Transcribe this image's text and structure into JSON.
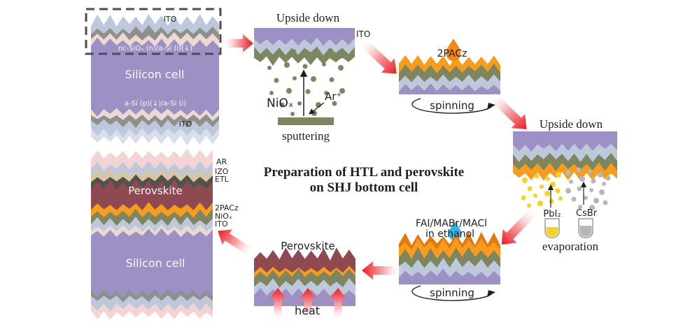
{
  "title": {
    "line1": "Preparation of HTL and perovskite",
    "line2": "on SHJ bottom cell"
  },
  "initial_stack": {
    "ito_top": "ITO",
    "nc_layer": "nc-SiOₓ (n)/a-Si (i)(↓)",
    "body": "Silicon cell",
    "p_layer": "a-Si (p)(↓)/a-Si (i)",
    "ito_bottom": "ITO"
  },
  "sputtering": {
    "title": "Upside down",
    "ito": "ITO",
    "target_material": "NiOₓ",
    "ion": "Ar⁺",
    "caption": "sputtering"
  },
  "pacz_spin": {
    "droplet_label": "2PACz",
    "caption": "spinning"
  },
  "evaporation": {
    "title": "Upside down",
    "source_left": "PbI₂",
    "source_right": "CsBr",
    "caption": "evaporation"
  },
  "fai_spin": {
    "solution_line1": "FAI/MABr/MACl",
    "solution_line2": "in ethanol",
    "caption": "spinning"
  },
  "anneal": {
    "label": "Perovskite",
    "caption": "heat"
  },
  "final_stack": {
    "labels": {
      "ar": "AR",
      "izo": "IZO",
      "etl": "ETL",
      "pacz": "2PACz",
      "niox": "NiOₓ",
      "ito": "ITO"
    },
    "perovskite": "Perovskite",
    "body": "Silicon cell"
  },
  "colors": {
    "purple": "#9c90c5",
    "blue": "#bdc8da",
    "paleblue": "#d8dfeb",
    "gray": "#8f8f8b",
    "pink": "#ecdad2",
    "lightpink": "#f3d3d3",
    "tan": "#d9c6a0",
    "darkgray": "#52524c",
    "maroon": "#8e4a50",
    "olive": "#7e8660",
    "orange": "#f79c1c",
    "orangedark": "#e2790f",
    "yellow": "#f4d321",
    "dotgray": "#b7b7b7",
    "drop_orange": "#f18a15",
    "drop_blue": "#2db6e9",
    "arrow_head": "#ec1b22",
    "arrow_mid": "#f6a9ac",
    "arrow_tail": "#ffffff",
    "dash_border": "#4d4d4d",
    "ink": "#1f1f1f"
  }
}
